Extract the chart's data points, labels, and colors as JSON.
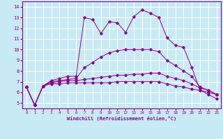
{
  "xlabel": "Windchill (Refroidissement éolien,°C)",
  "xlim": [
    -0.5,
    23.5
  ],
  "ylim": [
    4.5,
    14.5
  ],
  "yticks": [
    5,
    6,
    7,
    8,
    9,
    10,
    11,
    12,
    13,
    14
  ],
  "xticks": [
    0,
    1,
    2,
    3,
    4,
    5,
    6,
    7,
    8,
    9,
    10,
    11,
    12,
    13,
    14,
    15,
    16,
    17,
    18,
    19,
    20,
    21,
    22,
    23
  ],
  "bg_color": "#c8eaf4",
  "line_color": "#880088",
  "grid_color": "#ffffff",
  "line1_y": [
    6.5,
    4.8,
    6.6,
    7.1,
    7.3,
    7.5,
    7.5,
    13.0,
    12.8,
    11.5,
    12.6,
    12.5,
    11.6,
    13.1,
    13.7,
    13.4,
    13.0,
    11.1,
    10.4,
    10.2,
    8.3,
    6.2,
    5.8,
    5.4
  ],
  "line2_y": [
    6.5,
    4.8,
    6.6,
    7.0,
    7.1,
    7.2,
    7.3,
    8.3,
    8.8,
    9.3,
    9.7,
    9.9,
    10.0,
    10.0,
    10.0,
    10.0,
    9.8,
    9.0,
    8.5,
    8.0,
    7.5,
    6.5,
    6.2,
    5.8
  ],
  "line3_y": [
    6.5,
    4.8,
    6.6,
    6.9,
    7.0,
    7.1,
    7.1,
    7.2,
    7.3,
    7.4,
    7.5,
    7.6,
    7.6,
    7.7,
    7.7,
    7.8,
    7.8,
    7.5,
    7.3,
    7.1,
    6.8,
    6.4,
    6.2,
    5.8
  ],
  "line4_y": [
    6.5,
    4.8,
    6.6,
    6.8,
    6.8,
    6.9,
    6.9,
    6.9,
    6.9,
    6.9,
    6.9,
    7.0,
    7.0,
    7.0,
    7.0,
    7.0,
    7.0,
    6.8,
    6.6,
    6.5,
    6.3,
    6.2,
    6.0,
    5.8
  ]
}
